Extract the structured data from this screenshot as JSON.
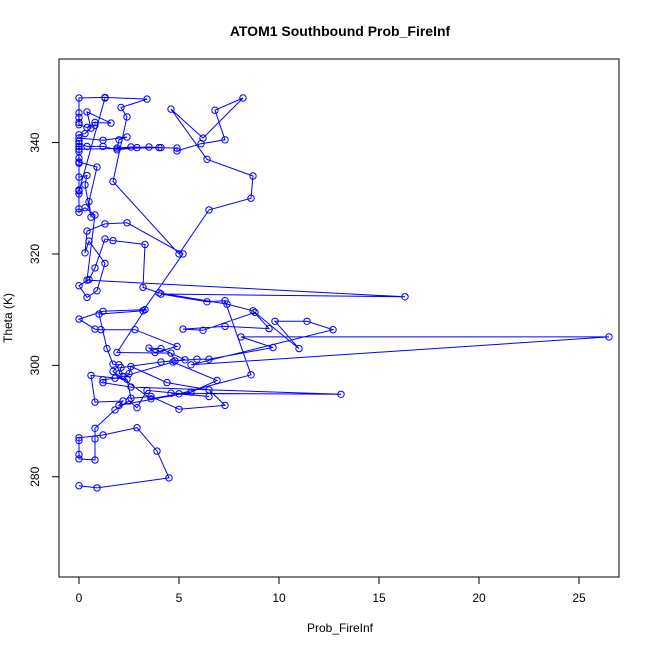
{
  "chart_data": {
    "type": "scatter",
    "title": "ATOM1 Southbound Prob_FireInf",
    "xlabel": "Prob_FireInf",
    "ylabel": "Theta (K)",
    "xlim": [
      -1,
      27
    ],
    "ylim": [
      262,
      355
    ],
    "x_ticks": [
      0,
      5,
      10,
      15,
      20,
      25
    ],
    "y_ticks": [
      280,
      300,
      320,
      340
    ],
    "grid": false,
    "legend": "none",
    "color": "#0000ff",
    "series": [
      {
        "points": [
          [
            0.0,
            278.4
          ],
          [
            0.9,
            278.0
          ],
          [
            4.5,
            279.8
          ],
          [
            3.9,
            284.6
          ],
          [
            2.9,
            288.8
          ],
          [
            1.2,
            287.5
          ],
          [
            0.0,
            287.0
          ],
          [
            0.0,
            286.5
          ],
          [
            0.0,
            284.0
          ],
          [
            0.0,
            283.2
          ],
          [
            0.8,
            283.0
          ],
          [
            0.8,
            286.8
          ],
          [
            0.8,
            288.7
          ],
          [
            1.8,
            292.0
          ],
          [
            2.5,
            293.6
          ],
          [
            2.9,
            292.4
          ],
          [
            3.4,
            295.5
          ],
          [
            6.5,
            294.4
          ],
          [
            4.6,
            295.0
          ],
          [
            13.1,
            294.8
          ],
          [
            2.6,
            296.1
          ],
          [
            1.2,
            296.9
          ],
          [
            1.2,
            297.4
          ],
          [
            1.8,
            297.7
          ],
          [
            2.2,
            298.0
          ],
          [
            4.7,
            300.6
          ],
          [
            6.9,
            297.3
          ],
          [
            5.6,
            295.2
          ],
          [
            2.0,
            292.8
          ],
          [
            2.2,
            293.6
          ],
          [
            0.8,
            293.4
          ],
          [
            0.6,
            298.2
          ],
          [
            2.4,
            297.5
          ],
          [
            2.6,
            294.1
          ],
          [
            3.6,
            294.4
          ],
          [
            5.0,
            292.1
          ],
          [
            7.3,
            292.8
          ],
          [
            6.5,
            295.6
          ],
          [
            4.4,
            296.9
          ],
          [
            2.6,
            299.8
          ],
          [
            2.5,
            298.5
          ],
          [
            2.0,
            298.5
          ],
          [
            2.1,
            299.6
          ],
          [
            4.1,
            300.6
          ],
          [
            5.3,
            301.0
          ],
          [
            4.1,
            303.0
          ],
          [
            3.5,
            303.1
          ],
          [
            3.8,
            302.3
          ],
          [
            4.9,
            303.4
          ],
          [
            2.8,
            306.4
          ],
          [
            1.1,
            306.4
          ],
          [
            0.8,
            306.5
          ],
          [
            0.0,
            308.3
          ],
          [
            1.2,
            309.7
          ],
          [
            3.3,
            310.0
          ],
          [
            1.9,
            302.3
          ],
          [
            4.6,
            302.2
          ],
          [
            4.8,
            300.8
          ],
          [
            5.9,
            301.1
          ],
          [
            6.5,
            301.1
          ],
          [
            9.7,
            303.2
          ],
          [
            8.1,
            305.1
          ],
          [
            26.5,
            305.1
          ],
          [
            5.6,
            300.1
          ],
          [
            12.7,
            306.4
          ],
          [
            11.4,
            307.9
          ],
          [
            9.8,
            307.9
          ],
          [
            11.0,
            303.0
          ],
          [
            8.8,
            309.5
          ],
          [
            6.2,
            306.3
          ],
          [
            5.2,
            306.5
          ],
          [
            7.3,
            307.0
          ],
          [
            9.5,
            306.6
          ],
          [
            8.7,
            309.8
          ],
          [
            7.4,
            311.0
          ],
          [
            4.0,
            313.0
          ],
          [
            3.2,
            314.0
          ],
          [
            3.3,
            321.7
          ],
          [
            1.7,
            322.4
          ],
          [
            1.3,
            322.7
          ],
          [
            0.8,
            317.5
          ],
          [
            0.5,
            315.4
          ],
          [
            0.0,
            314.3
          ],
          [
            0.4,
            312.2
          ],
          [
            0.9,
            313.4
          ],
          [
            1.3,
            318.3
          ],
          [
            0.5,
            322.3
          ],
          [
            0.3,
            320.2
          ],
          [
            0.4,
            324.1
          ],
          [
            1.3,
            325.4
          ],
          [
            2.4,
            325.6
          ],
          [
            5.2,
            320.0
          ],
          [
            3.2,
            309.8
          ],
          [
            1.0,
            309.2
          ],
          [
            1.4,
            303.0
          ],
          [
            1.7,
            300.2
          ],
          [
            2.0,
            300.1
          ],
          [
            1.7,
            298.9
          ],
          [
            3.6,
            294.0
          ],
          [
            5.0,
            294.9
          ],
          [
            8.6,
            298.3
          ],
          [
            7.3,
            311.6
          ],
          [
            6.4,
            311.4
          ],
          [
            4.1,
            312.8
          ],
          [
            16.3,
            312.3
          ],
          [
            0.4,
            315.3
          ],
          [
            0.8,
            327.0
          ],
          [
            0.3,
            328.3
          ],
          [
            0.0,
            327.5
          ],
          [
            0.0,
            328.1
          ],
          [
            0.0,
            330.8
          ],
          [
            0.0,
            331.5
          ],
          [
            0.0,
            333.8
          ],
          [
            0.4,
            334.1
          ],
          [
            0.3,
            332.4
          ],
          [
            0.6,
            326.6
          ],
          [
            0.5,
            329.4
          ],
          [
            0.9,
            335.6
          ],
          [
            0.0,
            336.5
          ],
          [
            0.0,
            337.2
          ],
          [
            0.0,
            338.4
          ],
          [
            0.0,
            339.3
          ],
          [
            0.0,
            340.2
          ],
          [
            0.0,
            339.8
          ],
          [
            0.4,
            339.3
          ],
          [
            1.2,
            339.3
          ],
          [
            1.9,
            338.7
          ],
          [
            2.9,
            339.1
          ],
          [
            3.5,
            339.2
          ],
          [
            4.0,
            339.1
          ],
          [
            4.9,
            339.0
          ],
          [
            4.9,
            338.5
          ],
          [
            6.1,
            339.8
          ],
          [
            7.3,
            340.5
          ],
          [
            6.8,
            345.8
          ],
          [
            8.2,
            348.0
          ],
          [
            6.2,
            340.8
          ],
          [
            4.6,
            346.0
          ],
          [
            6.4,
            337.0
          ],
          [
            8.7,
            334.0
          ],
          [
            8.6,
            330.0
          ],
          [
            6.5,
            327.9
          ],
          [
            5.0,
            320.0
          ],
          [
            1.7,
            333.0
          ],
          [
            2.4,
            344.6
          ],
          [
            2.1,
            346.3
          ],
          [
            3.4,
            347.8
          ],
          [
            1.3,
            348.1
          ],
          [
            0.0,
            348.0
          ],
          [
            0.0,
            345.3
          ],
          [
            0.0,
            344.5
          ],
          [
            0.0,
            343.6
          ],
          [
            0.0,
            343.2
          ],
          [
            0.4,
            342.7
          ],
          [
            0.8,
            343.1
          ],
          [
            0.8,
            343.6
          ],
          [
            1.6,
            343.5
          ],
          [
            0.4,
            345.5
          ],
          [
            0.6,
            342.6
          ],
          [
            0.3,
            341.6
          ],
          [
            0.0,
            341.4
          ],
          [
            0.0,
            340.8
          ],
          [
            1.2,
            340.4
          ],
          [
            2.4,
            341.0
          ],
          [
            2.0,
            340.5
          ],
          [
            1.9,
            339.0
          ],
          [
            2.6,
            339.2
          ],
          [
            4.1,
            339.1
          ],
          [
            0.0,
            338.8
          ],
          [
            0.0,
            336.3
          ],
          [
            0.0,
            331.3
          ],
          [
            1.3,
            348.0
          ]
        ]
      }
    ]
  }
}
